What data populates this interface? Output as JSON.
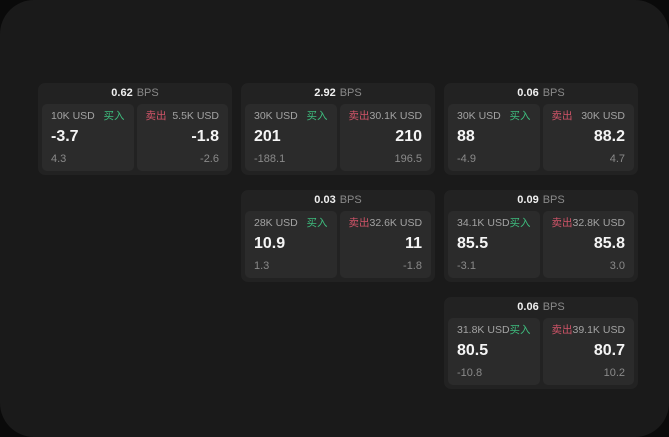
{
  "labels": {
    "bps_unit": "BPS",
    "buy": "买入",
    "sell": "卖出"
  },
  "colors": {
    "buy_green": "#3ebd7e",
    "sell_red": "#d05468",
    "window_bg": "#1a1a1a",
    "card_bg": "#222222",
    "panel_bg": "#2b2b2b"
  },
  "cards": [
    {
      "bps": "0.62",
      "buy": {
        "amount": "10K USD",
        "price": "-3.7",
        "delta": "4.3"
      },
      "sell": {
        "amount": "5.5K USD",
        "price": "-1.8",
        "delta": "-2.6"
      }
    },
    {
      "bps": "2.92",
      "buy": {
        "amount": "30K USD",
        "price": "201",
        "delta": "-188.1"
      },
      "sell": {
        "amount": "30.1K USD",
        "price": "210",
        "delta": "196.5"
      }
    },
    {
      "bps": "0.06",
      "buy": {
        "amount": "30K USD",
        "price": "88",
        "delta": "-4.9"
      },
      "sell": {
        "amount": "30K USD",
        "price": "88.2",
        "delta": "4.7"
      }
    },
    {
      "bps": "0.03",
      "buy": {
        "amount": "28K USD",
        "price": "10.9",
        "delta": "1.3"
      },
      "sell": {
        "amount": "32.6K USD",
        "price": "11",
        "delta": "-1.8"
      }
    },
    {
      "bps": "0.09",
      "buy": {
        "amount": "34.1K USD",
        "price": "85.5",
        "delta": "-3.1"
      },
      "sell": {
        "amount": "32.8K USD",
        "price": "85.8",
        "delta": "3.0"
      }
    },
    {
      "bps": "0.06",
      "buy": {
        "amount": "31.8K USD",
        "price": "80.5",
        "delta": "-10.8"
      },
      "sell": {
        "amount": "39.1K USD",
        "price": "80.7",
        "delta": "10.2"
      }
    }
  ]
}
